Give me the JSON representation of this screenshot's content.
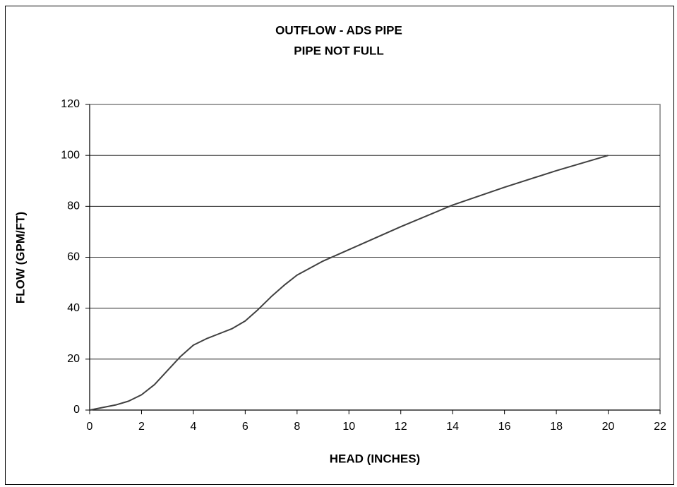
{
  "chart_data": {
    "type": "line",
    "title": "OUTFLOW - ADS PIPE",
    "subtitle": "PIPE NOT FULL",
    "x_label": "HEAD (INCHES)",
    "y_label": "FLOW (GPM/FT)",
    "x": [
      0,
      0.5,
      1,
      1.5,
      2,
      2.5,
      3,
      3.5,
      4,
      4.5,
      5,
      5.5,
      6,
      6.5,
      7,
      7.5,
      8,
      9,
      10,
      12,
      14,
      16,
      18,
      20
    ],
    "series": [
      {
        "color": "#404040",
        "values": [
          0,
          1,
          2,
          3.5,
          6,
          10,
          15.5,
          21,
          25.5,
          28,
          30,
          32,
          35,
          39.5,
          44.5,
          49,
          53,
          58.5,
          63,
          72,
          80.5,
          87.5,
          94,
          100
        ]
      }
    ],
    "xlim": [
      0,
      22
    ],
    "xticks": [
      0,
      2,
      4,
      6,
      8,
      10,
      12,
      14,
      16,
      18,
      20,
      22
    ],
    "ylim": [
      0,
      120
    ],
    "yticks": [
      0,
      20,
      40,
      60,
      80,
      100,
      120
    ],
    "grid": true
  }
}
